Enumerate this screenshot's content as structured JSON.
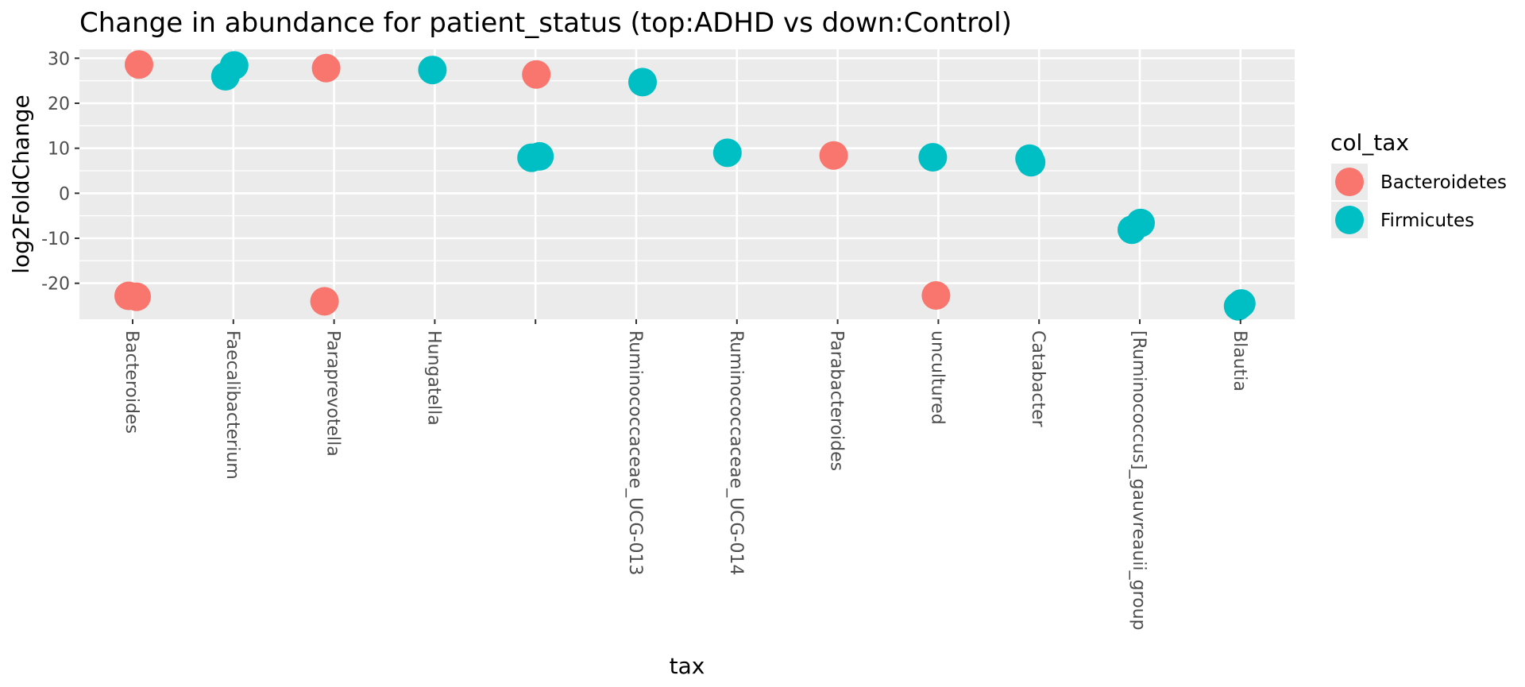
{
  "chart_data": {
    "type": "scatter",
    "title": "Change in abundance for patient_status (top:ADHD vs down:Control)",
    "xlabel": "tax",
    "ylabel": "log2FoldChange",
    "categories": [
      "Bacteroides",
      "Faecalibacterium",
      "Paraprevotella",
      "Hungatella",
      "",
      "Ruminococcaceae_UCG-013",
      "Ruminococcaceae_UCG-014",
      "Parabacteroides",
      "uncultured",
      "Catabacter",
      "[Ruminococcus]_gauvreauii_group",
      "Blautia"
    ],
    "ylim": [
      -28,
      32
    ],
    "yticks": [
      -20,
      -10,
      0,
      10,
      20,
      30
    ],
    "ytick_labels": [
      "-20",
      "-10",
      "0",
      "10",
      "20",
      "30"
    ],
    "grid": true,
    "legend": {
      "title": "col_tax",
      "placement": "right",
      "entries": [
        "Bacteroidetes",
        "Firmicutes"
      ]
    },
    "colors": {
      "Bacteroidetes": "#F8766D",
      "Firmicutes": "#00BFC4",
      "panel": "#EBEBEB",
      "grid": "#FFFFFF"
    },
    "series": [
      {
        "name": "Bacteroidetes",
        "points": [
          {
            "x": "Bacteroides",
            "y": 28.6
          },
          {
            "x": "Bacteroides",
            "y": -23.0
          },
          {
            "x": "Bacteroides",
            "y": -22.8
          },
          {
            "x": "Paraprevotella",
            "y": 27.8
          },
          {
            "x": "Paraprevotella",
            "y": -24.0
          },
          {
            "x": "",
            "y": 26.4
          },
          {
            "x": "Parabacteroides",
            "y": 8.4
          },
          {
            "x": "uncultured",
            "y": -22.7
          }
        ]
      },
      {
        "name": "Firmicutes",
        "points": [
          {
            "x": "Faecalibacterium",
            "y": 28.4
          },
          {
            "x": "Faecalibacterium",
            "y": 26.0
          },
          {
            "x": "Hungatella",
            "y": 27.4
          },
          {
            "x": "",
            "y": 8.2
          },
          {
            "x": "",
            "y": 7.9
          },
          {
            "x": "Ruminococcaceae_UCG-013",
            "y": 24.7
          },
          {
            "x": "Ruminococcaceae_UCG-014",
            "y": 9.0
          },
          {
            "x": "uncultured",
            "y": 8.0
          },
          {
            "x": "Catabacter",
            "y": 6.9
          },
          {
            "x": "Catabacter",
            "y": 7.7
          },
          {
            "x": "[Ruminococcus]_gauvreauii_group",
            "y": -6.6
          },
          {
            "x": "[Ruminococcus]_gauvreauii_group",
            "y": -8.1
          },
          {
            "x": "Blautia",
            "y": -25.1
          },
          {
            "x": "Blautia",
            "y": -24.5
          }
        ]
      }
    ]
  }
}
